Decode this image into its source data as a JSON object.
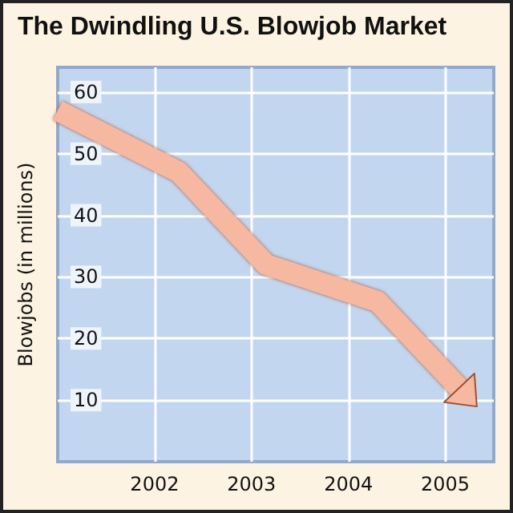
{
  "chart_data": {
    "type": "line",
    "title": "The Dwindling U.S. Blowjob Market",
    "ylabel": "Blowjobs (in millions)",
    "x": [
      2001,
      2002.25,
      2003.15,
      2004.3,
      2005.2
    ],
    "values": [
      57,
      47,
      32,
      26,
      11
    ],
    "color": "#f7b8a2",
    "xlim": [
      2001,
      2005.5
    ],
    "xticks": [
      2002,
      2003,
      2004,
      2005
    ],
    "ylim": [
      0,
      64
    ],
    "yticks": [
      10,
      20,
      30,
      40,
      50,
      60
    ],
    "grid": true
  }
}
